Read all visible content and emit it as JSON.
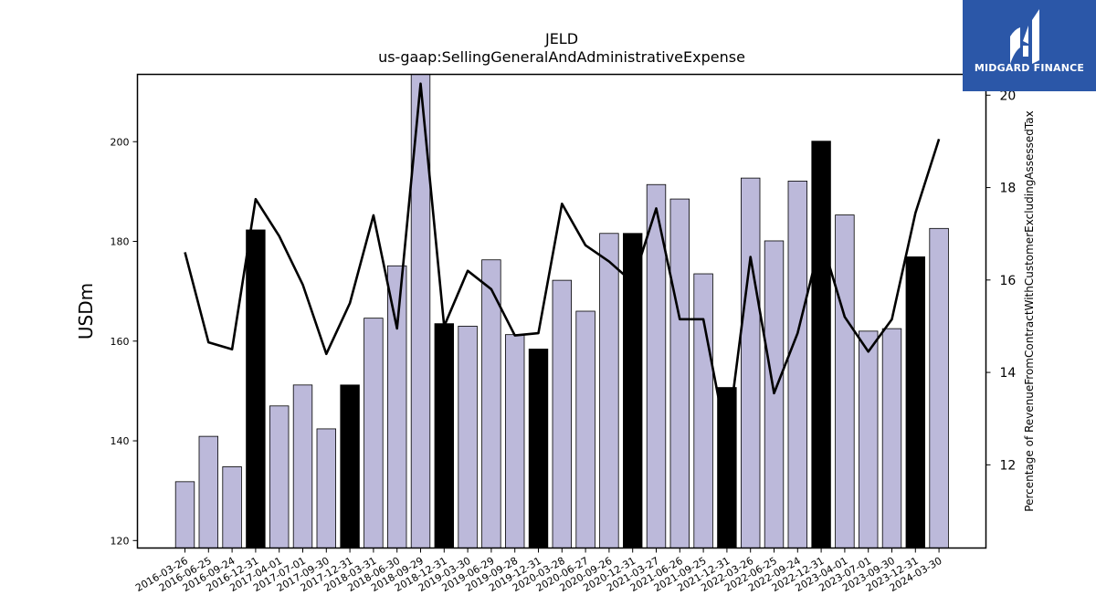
{
  "colors": {
    "bar_fill": "#bcb9da",
    "bar_highlight": "#000000",
    "bar_edge": "#000000",
    "line": "#000000",
    "logo_bg": "#2b57a8",
    "logo_fg": "#ffffff"
  },
  "logo": {
    "text": "MIDGARD FINANCE",
    "icon": "midgard-m-logo-icon"
  },
  "chart_data": {
    "type": "bar",
    "title": "JELD",
    "subtitle": "us-gaap:SellingGeneralAndAdministrativeExpense",
    "ylabel": "USDm",
    "y2label": "Percentage of RevenueFromContractWithCustomerExcludingAssessedTax",
    "ylim": [
      118.5,
      213.5
    ],
    "y2lim": [
      10.2,
      20.45
    ],
    "yticks": [
      120,
      140,
      160,
      180,
      200
    ],
    "y2ticks": [
      12,
      14,
      16,
      18,
      20
    ],
    "grid": false,
    "categories": [
      "2016-03-26",
      "2016-06-25",
      "2016-09-24",
      "2016-12-31",
      "2017-04-01",
      "2017-07-01",
      "2017-09-30",
      "2017-12-31",
      "2018-03-31",
      "2018-06-30",
      "2018-09-29",
      "2018-12-31",
      "2019-03-30",
      "2019-06-29",
      "2019-09-28",
      "2019-12-31",
      "2020-03-28",
      "2020-06-27",
      "2020-09-26",
      "2020-12-31",
      "2021-03-27",
      "2021-06-26",
      "2021-09-25",
      "2021-12-31",
      "2022-03-26",
      "2022-06-25",
      "2022-09-24",
      "2022-12-31",
      "2023-04-01",
      "2023-07-01",
      "2023-09-30",
      "2023-12-31",
      "2024-03-30"
    ],
    "series": [
      {
        "type": "bar",
        "axis": "left",
        "values": [
          131.8,
          140.9,
          134.8,
          182.3,
          147.0,
          151.2,
          142.4,
          151.2,
          164.6,
          175.1,
          214.0,
          163.5,
          163.0,
          176.3,
          161.3,
          158.4,
          172.2,
          166.0,
          181.6,
          181.6,
          191.4,
          188.5,
          173.5,
          150.7,
          192.7,
          180.1,
          192.1,
          200.1,
          185.3,
          162.0,
          162.5,
          176.9,
          182.6
        ],
        "highlighted": [
          false,
          false,
          false,
          true,
          false,
          false,
          false,
          true,
          false,
          false,
          false,
          true,
          false,
          false,
          false,
          true,
          false,
          false,
          false,
          true,
          false,
          false,
          false,
          true,
          false,
          false,
          false,
          true,
          false,
          false,
          false,
          true,
          false
        ]
      },
      {
        "type": "line",
        "axis": "right",
        "values": [
          16.6,
          14.65,
          14.5,
          17.75,
          16.95,
          15.9,
          14.4,
          15.5,
          17.4,
          14.95,
          20.25,
          15.0,
          16.2,
          15.8,
          14.8,
          14.85,
          17.65,
          16.75,
          16.4,
          15.95,
          17.55,
          15.15,
          15.15,
          12.5,
          16.5,
          13.55,
          14.85,
          16.9,
          15.2,
          14.45,
          15.15,
          17.45,
          19.05
        ]
      }
    ]
  }
}
